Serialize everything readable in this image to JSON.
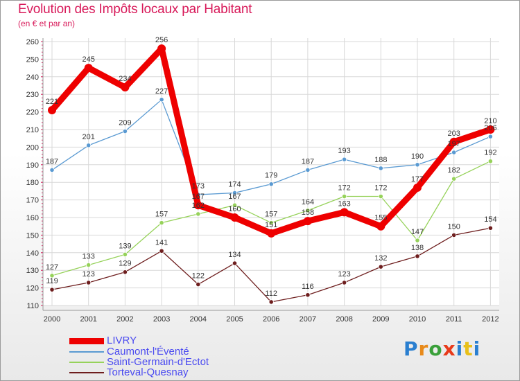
{
  "header": {
    "title": "Evolution des Impôts locaux par Habitant",
    "subtitle": "(en € et par an)"
  },
  "brand": {
    "logo_text": "Proxiti"
  },
  "chart_data": {
    "type": "line",
    "title": "Evolution des Impôts locaux par Habitant",
    "subtitle": "(en € et par an)",
    "xlabel": "",
    "ylabel": "",
    "x": [
      "2000",
      "2001",
      "2002",
      "2003",
      "2004",
      "2005",
      "2006",
      "2007",
      "2008",
      "2009",
      "2010",
      "2011",
      "2012"
    ],
    "ylim": [
      110,
      260
    ],
    "yticks": [
      110,
      120,
      130,
      140,
      150,
      160,
      170,
      180,
      190,
      200,
      210,
      220,
      230,
      240,
      250,
      260
    ],
    "grid": true,
    "legend_position": "bottom-left",
    "series": [
      {
        "name": "LIVRY",
        "color": "#ee0000",
        "values": [
          221,
          245,
          234,
          256,
          167,
          160,
          151,
          158,
          163,
          155,
          177,
          203,
          210
        ],
        "labels": [
          "221",
          "245",
          "234",
          "256",
          "167",
          "160",
          "151",
          "158",
          "163",
          "155",
          "177",
          "203",
          "210"
        ]
      },
      {
        "name": "Caumont-l'Éventé",
        "color": "#5a9ad2",
        "values": [
          187,
          201,
          209,
          227,
          173,
          174,
          179,
          187,
          193,
          188,
          190,
          197,
          206
        ],
        "labels": [
          "187",
          "201",
          "209",
          "227",
          "173",
          "174",
          "179",
          "187",
          "193",
          "188",
          "190",
          "197",
          "206"
        ]
      },
      {
        "name": "Saint-Germain-d'Ectot",
        "color": "#96d25a",
        "values": [
          127,
          133,
          139,
          157,
          162,
          167,
          157,
          164,
          172,
          172,
          147,
          182,
          192
        ],
        "labels": [
          "127",
          "133",
          "139",
          "157",
          "162",
          "167",
          "157",
          "164",
          "172",
          "172",
          "147",
          "182",
          "192"
        ]
      },
      {
        "name": "Torteval-Quesnay",
        "color": "#6e1e1e",
        "values": [
          119,
          123,
          129,
          141,
          122,
          134,
          112,
          116,
          123,
          132,
          138,
          150,
          154
        ],
        "labels": [
          "119",
          "123",
          "129",
          "141",
          "122",
          "134",
          "112",
          "116",
          "123",
          "132",
          "138",
          "150",
          "154"
        ]
      }
    ]
  }
}
